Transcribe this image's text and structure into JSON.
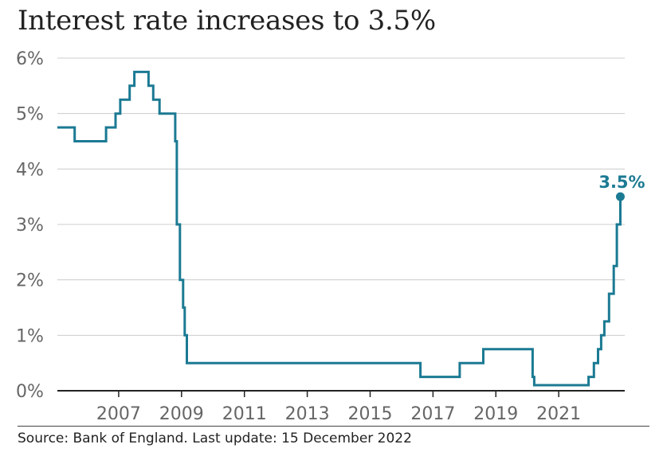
{
  "title": "Interest rate increases to 3.5%",
  "source": "Source: Bank of England. Last update: 15 December 2022",
  "colors": {
    "line": "#1b7a93",
    "grid": "#cccccc",
    "axis": "#222222",
    "tick_text": "#666666"
  },
  "chart_data": {
    "type": "line",
    "step": true,
    "title": "Interest rate increases to 3.5%",
    "xlabel": "",
    "ylabel": "",
    "xlim": [
      2005.05,
      2023.1
    ],
    "ylim": [
      0,
      6
    ],
    "grid": true,
    "x_ticks": [
      {
        "value": 2007,
        "label": "2007"
      },
      {
        "value": 2009,
        "label": "2009"
      },
      {
        "value": 2011,
        "label": "2011"
      },
      {
        "value": 2013,
        "label": "2013"
      },
      {
        "value": 2015,
        "label": "2015"
      },
      {
        "value": 2017,
        "label": "2017"
      },
      {
        "value": 2019,
        "label": "2019"
      },
      {
        "value": 2021,
        "label": "2021"
      }
    ],
    "y_ticks": [
      {
        "value": 0,
        "label": "0%"
      },
      {
        "value": 1,
        "label": "1%"
      },
      {
        "value": 2,
        "label": "2%"
      },
      {
        "value": 3,
        "label": "3%"
      },
      {
        "value": 4,
        "label": "4%"
      },
      {
        "value": 5,
        "label": "5%"
      },
      {
        "value": 6,
        "label": "6%"
      }
    ],
    "series": [
      {
        "points": [
          [
            2005.05,
            4.75
          ],
          [
            2005.6,
            4.5
          ],
          [
            2006.6,
            4.75
          ],
          [
            2006.9,
            5.0
          ],
          [
            2007.05,
            5.25
          ],
          [
            2007.35,
            5.5
          ],
          [
            2007.5,
            5.75
          ],
          [
            2007.95,
            5.5
          ],
          [
            2008.1,
            5.25
          ],
          [
            2008.3,
            5.0
          ],
          [
            2008.8,
            4.5
          ],
          [
            2008.85,
            3.0
          ],
          [
            2008.95,
            2.0
          ],
          [
            2009.05,
            1.5
          ],
          [
            2009.1,
            1.0
          ],
          [
            2009.17,
            0.5
          ],
          [
            2016.6,
            0.25
          ],
          [
            2017.85,
            0.5
          ],
          [
            2018.6,
            0.75
          ],
          [
            2020.17,
            0.25
          ],
          [
            2020.22,
            0.1
          ],
          [
            2021.95,
            0.25
          ],
          [
            2022.12,
            0.5
          ],
          [
            2022.25,
            0.75
          ],
          [
            2022.35,
            1.0
          ],
          [
            2022.45,
            1.25
          ],
          [
            2022.6,
            1.75
          ],
          [
            2022.75,
            2.25
          ],
          [
            2022.85,
            3.0
          ],
          [
            2022.96,
            3.5
          ]
        ]
      }
    ],
    "annotations": [
      {
        "x": 2022.96,
        "y": 3.5,
        "label": "3.5%"
      }
    ]
  }
}
